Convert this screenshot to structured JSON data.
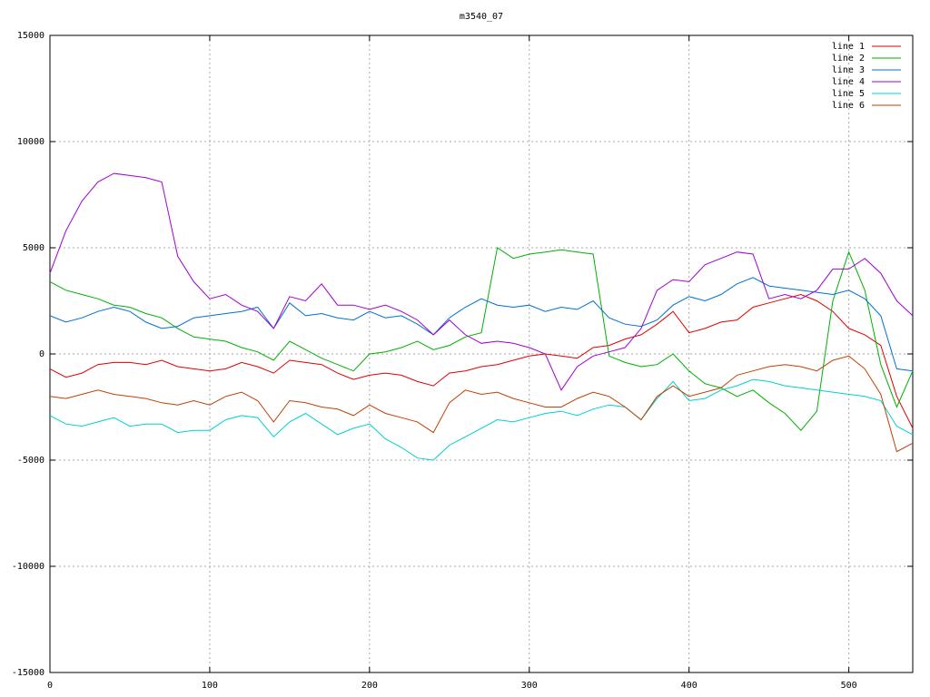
{
  "chart_data": {
    "type": "line",
    "title": "m3540_07",
    "x": [
      0,
      10,
      20,
      30,
      40,
      50,
      60,
      70,
      80,
      90,
      100,
      110,
      120,
      130,
      140,
      150,
      160,
      170,
      180,
      190,
      200,
      210,
      220,
      230,
      240,
      250,
      260,
      270,
      280,
      290,
      300,
      310,
      320,
      330,
      340,
      350,
      360,
      370,
      380,
      390,
      400,
      410,
      420,
      430,
      440,
      450,
      460,
      470,
      480,
      490,
      500,
      510,
      520,
      530,
      540
    ],
    "xlim": [
      0,
      540
    ],
    "xticks": [
      0,
      100,
      200,
      300,
      400,
      500
    ],
    "ylim": [
      -15000,
      15000
    ],
    "yticks": [
      -15000,
      -10000,
      -5000,
      0,
      5000,
      10000,
      15000
    ],
    "grid": true,
    "legend": "top-right",
    "series": [
      {
        "name": "line 1",
        "color": "#e00000",
        "values": [
          -700,
          -1100,
          -900,
          -500,
          -400,
          -400,
          -500,
          -300,
          -600,
          -700,
          -800,
          -700,
          -400,
          -600,
          -900,
          -300,
          -400,
          -500,
          -900,
          -1200,
          -1000,
          -900,
          -1000,
          -1300,
          -1500,
          -900,
          -800,
          -600,
          -500,
          -300,
          -100,
          0,
          -100,
          -200,
          300,
          400,
          700,
          900,
          1400,
          2000,
          1000,
          1200,
          1500,
          1600,
          2200,
          2400,
          2600,
          2800,
          2500,
          2000,
          1200,
          900,
          400,
          -2000,
          -3500
        ]
      },
      {
        "name": "line 2",
        "color": "#00b000",
        "values": [
          3400,
          3000,
          2800,
          2600,
          2300,
          2200,
          1900,
          1700,
          1200,
          800,
          700,
          600,
          300,
          100,
          -300,
          600,
          200,
          -200,
          -500,
          -800,
          0,
          100,
          300,
          600,
          200,
          400,
          800,
          1000,
          5000,
          4500,
          4700,
          4800,
          4900,
          4800,
          4700,
          -100,
          -400,
          -600,
          -500,
          0,
          -800,
          -1400,
          -1600,
          -2000,
          -1700,
          -2300,
          -2800,
          -3600,
          -2700,
          2500,
          4800,
          3000,
          -500,
          -2500,
          -800
        ]
      },
      {
        "name": "line 3",
        "color": "#0070d0",
        "values": [
          1800,
          1500,
          1700,
          2000,
          2200,
          2000,
          1500,
          1200,
          1300,
          1700,
          1800,
          1900,
          2000,
          2200,
          1200,
          2400,
          1800,
          1900,
          1700,
          1600,
          2000,
          1700,
          1800,
          1400,
          900,
          1700,
          2200,
          2600,
          2300,
          2200,
          2300,
          2000,
          2200,
          2100,
          2500,
          1700,
          1400,
          1300,
          1600,
          2300,
          2700,
          2500,
          2800,
          3300,
          3600,
          3200,
          3100,
          3000,
          2900,
          2800,
          3000,
          2600,
          1800,
          -700,
          -800
        ]
      },
      {
        "name": "line 4",
        "color": "#a000d0",
        "values": [
          3800,
          5800,
          7200,
          8100,
          8500,
          8400,
          8300,
          8100,
          4600,
          3400,
          2600,
          2800,
          2300,
          2000,
          1200,
          2700,
          2500,
          3300,
          2300,
          2300,
          2100,
          2300,
          2000,
          1600,
          900,
          1600,
          900,
          500,
          600,
          500,
          300,
          0,
          -1700,
          -600,
          -100,
          100,
          300,
          1200,
          3000,
          3500,
          3400,
          4200,
          4500,
          4800,
          4700,
          2600,
          2800,
          2600,
          3000,
          4000,
          4000,
          4500,
          3800,
          2500,
          1800
        ]
      },
      {
        "name": "line 5",
        "color": "#00d0d0",
        "values": [
          -2900,
          -3300,
          -3400,
          -3200,
          -3000,
          -3400,
          -3300,
          -3300,
          -3700,
          -3600,
          -3600,
          -3100,
          -2900,
          -3000,
          -3900,
          -3200,
          -2800,
          -3300,
          -3800,
          -3500,
          -3300,
          -4000,
          -4400,
          -4900,
          -5000,
          -4300,
          -3900,
          -3500,
          -3100,
          -3200,
          -3000,
          -2800,
          -2700,
          -2900,
          -2600,
          -2400,
          -2500,
          -3100,
          -2100,
          -1300,
          -2200,
          -2100,
          -1700,
          -1500,
          -1200,
          -1300,
          -1500,
          -1600,
          -1700,
          -1800,
          -1900,
          -2000,
          -2200,
          -3400,
          -3800
        ]
      },
      {
        "name": "line 6",
        "color": "#c04000",
        "values": [
          -2000,
          -2100,
          -1900,
          -1700,
          -1900,
          -2000,
          -2100,
          -2300,
          -2400,
          -2200,
          -2400,
          -2000,
          -1800,
          -2200,
          -3200,
          -2200,
          -2300,
          -2500,
          -2600,
          -2900,
          -2400,
          -2800,
          -3000,
          -3200,
          -3700,
          -2300,
          -1700,
          -1900,
          -1800,
          -2100,
          -2300,
          -2500,
          -2500,
          -2100,
          -1800,
          -2000,
          -2500,
          -3100,
          -2000,
          -1500,
          -2000,
          -1800,
          -1600,
          -1000,
          -800,
          -600,
          -500,
          -600,
          -800,
          -300,
          -100,
          -700,
          -1900,
          -4600,
          -4200
        ]
      }
    ]
  }
}
